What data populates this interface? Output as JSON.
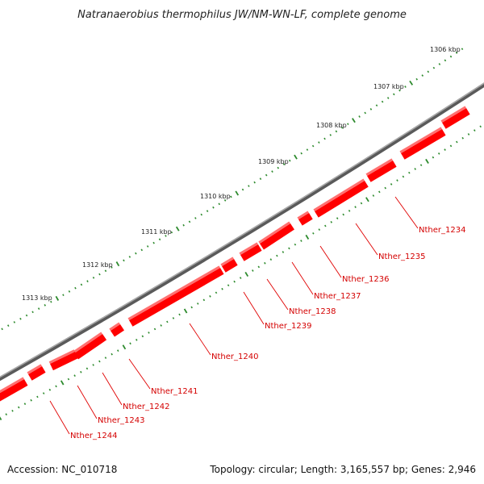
{
  "title": "Natranaerobius thermophilus JW/NM-WN-LF, complete genome",
  "accession_label": "Accession: NC_010718",
  "topology_label": "Topology: circular; Length: 3,165,557 bp; Genes: 2,946",
  "colors": {
    "gene_fill": "#ff0000",
    "gene_top": "#ff7070",
    "gene_side": "#b80000",
    "backbone": "#808080",
    "tick": "#2e8b2e",
    "label": "#d40000"
  },
  "kbp_scale": [
    {
      "label": "1306 kbp"
    },
    {
      "label": "1307 kbp"
    },
    {
      "label": "1308 kbp"
    },
    {
      "label": "1309 kbp"
    },
    {
      "label": "1310 kbp"
    },
    {
      "label": "1311 kbp"
    },
    {
      "label": "1312 kbp"
    },
    {
      "label": "1313 kbp"
    }
  ],
  "genes": [
    {
      "label": "Nther_1234"
    },
    {
      "label": "Nther_1235"
    },
    {
      "label": "Nther_1236"
    },
    {
      "label": "Nther_1237"
    },
    {
      "label": "Nther_1238"
    },
    {
      "label": "Nther_1239"
    },
    {
      "label": "Nther_1240"
    },
    {
      "label": "Nther_1241"
    },
    {
      "label": "Nther_1242"
    },
    {
      "label": "Nther_1243"
    },
    {
      "label": "Nther_1244"
    }
  ]
}
